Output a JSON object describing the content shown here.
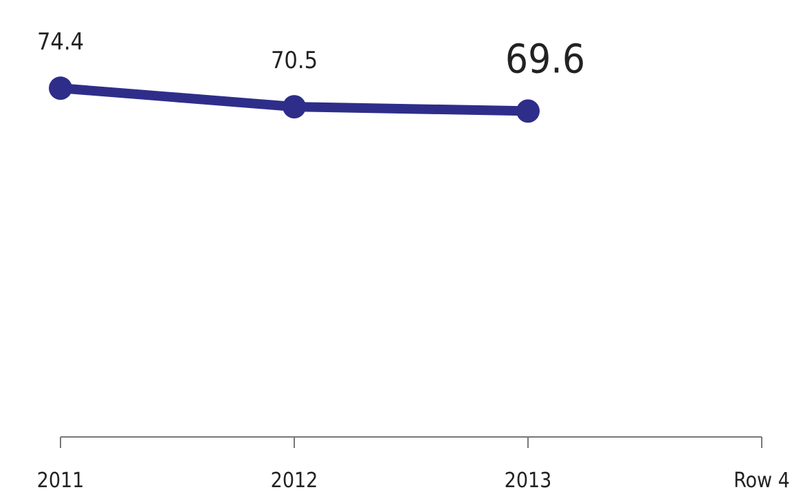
{
  "chart_data": {
    "type": "line",
    "categories": [
      "2011",
      "2012",
      "2013",
      "Row 4"
    ],
    "series": [
      {
        "color": "#2e2e8a",
        "values": [
          74.4,
          70.5,
          69.6,
          null
        ]
      }
    ]
  }
}
